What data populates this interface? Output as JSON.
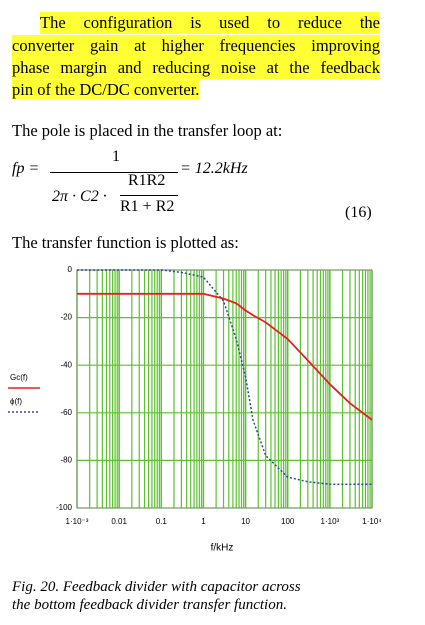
{
  "intro": {
    "lines": [
      "The configuration is used to reduce the",
      "converter gain at higher frequencies improving",
      "phase margin and reducing noise at the feedback",
      "pin of the DC/DC converter."
    ]
  },
  "pole_text": "The pole is placed in the transfer loop at:",
  "equation": {
    "lhs": "fp =",
    "numerator": "1",
    "denominator_prefix": "2π · C2 ·",
    "inner_numerator": "R1R2",
    "inner_denominator": "R1 + R2",
    "result": "= 12.2kHz",
    "number": "(16)"
  },
  "plot_text": "The transfer function is plotted as:",
  "chart_data": {
    "type": "line",
    "xlabel": "f/kHz",
    "log_x": true,
    "grid": true,
    "x": [
      0.001,
      0.01,
      0.1,
      0.3,
      1,
      3,
      6,
      10,
      15,
      30,
      100,
      300,
      1000,
      3000,
      10000
    ],
    "series": [
      {
        "name": "Gc(f)",
        "color": "#e8201c",
        "dash": false,
        "values": [
          -10,
          -10,
          -10,
          -10,
          -10,
          -12,
          -14,
          -17,
          -19,
          -22,
          -29,
          -38,
          -48,
          -56,
          -63
        ]
      },
      {
        "name": "ϕ(f)",
        "color": "#2c4a9c",
        "dash": true,
        "values": [
          0,
          0,
          0,
          -1,
          -3,
          -13,
          -29,
          -45,
          -63,
          -78,
          -87,
          -89,
          -90,
          -90,
          -90
        ]
      }
    ],
    "xlim": [
      0.001,
      10000
    ],
    "xticks": [
      {
        "value": 0.001,
        "label": "1·10⁻³"
      },
      0.01,
      0.1,
      1,
      10,
      100,
      {
        "value": 1000,
        "label": "1·10³"
      },
      {
        "value": 10000,
        "label": "1·10⁴"
      }
    ],
    "ylim": [
      -100,
      0
    ],
    "yticks": [
      0,
      -20,
      -40,
      -60,
      -80,
      -100
    ]
  },
  "caption": {
    "lines": [
      "Fig. 20. Feedback divider with capacitor across",
      "the bottom feedback divider transfer function."
    ]
  }
}
